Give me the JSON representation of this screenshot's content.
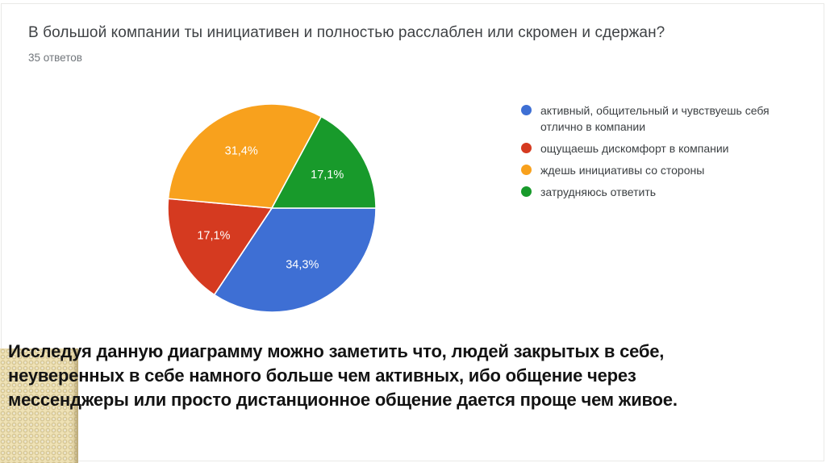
{
  "chart_data": {
    "type": "pie",
    "title": "В большой компании ты инициативен и полностью расслаблен или скромен и сдержан?",
    "subtitle": "35 ответов",
    "categories": [
      "активный, общительный и чувствуешь себя отлично в компании",
      "ощущаешь дискомфорт в компании",
      "ждешь инициативы со стороны",
      "затрудняюсь ответить"
    ],
    "values": [
      34.3,
      17.1,
      31.4,
      17.1
    ],
    "slice_labels": [
      "34,3%",
      "17,1%",
      "31,4%",
      "17,1%"
    ],
    "colors": [
      "#3E6FD4",
      "#D53A20",
      "#F8A11D",
      "#189A2B"
    ],
    "legend_position": "right",
    "start_angle": "east",
    "direction": "clockwise",
    "label_color": "#ffffff"
  },
  "analysis": {
    "lines": [
      "Исследуя данную диаграмму можно заметить что, людей закрытых в себе,",
      "неуверенных в себе намного больше чем активных, ибо общение через",
      "мессенджеры или просто дистанционное общение дается проще чем живое."
    ]
  }
}
